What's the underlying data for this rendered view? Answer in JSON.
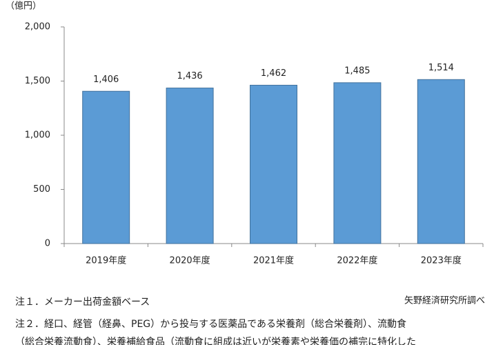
{
  "chart_data": {
    "type": "bar",
    "y_unit_label": "（億円）",
    "categories": [
      "2019年度",
      "2020年度",
      "2021年度",
      "2022年度",
      "2023年度"
    ],
    "values": [
      1406,
      1436,
      1462,
      1485,
      1514
    ],
    "value_labels": [
      "1,406",
      "1,436",
      "1,462",
      "1,485",
      "1,514"
    ],
    "color": "#5b9bd5",
    "ylim": [
      0,
      2000
    ],
    "yticks": [
      0,
      500,
      {
        "value": 1000,
        "label": "1,000"
      },
      {
        "value": 1500,
        "label": "1,500"
      },
      {
        "value": 2000,
        "label": "2,000"
      }
    ],
    "grid": false
  },
  "source": "矢野経済研究所調べ",
  "notes": [
    "注１．メーカー出荷金額ベース",
    "注２．経口、経管（経鼻、PEG）から投与する医薬品である栄養剤（総合栄養剤）、流動食",
    "（総合栄養流動食）、栄養補給食品（流動食に組成は近いが栄養素や栄養価の補完に特化した"
  ]
}
